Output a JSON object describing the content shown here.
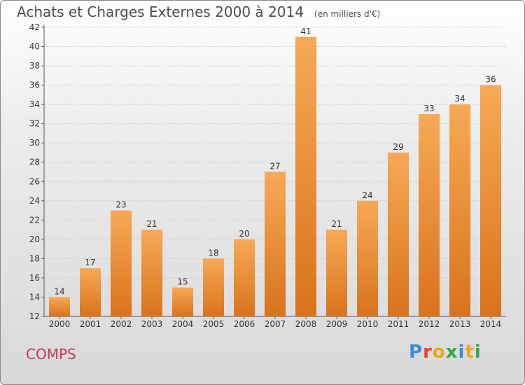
{
  "title": "Achats et Charges Externes 2000 à 2014",
  "unit_note": "(en milliers d'€)",
  "commune": "COMPS",
  "logo": {
    "letters": [
      "P",
      "r",
      "o",
      "x",
      "i",
      "t",
      "i"
    ],
    "colors": [
      "#3a8fd6",
      "#e8452e",
      "#f2a51e",
      "#2eaa4a",
      "#3a8fd6",
      "#f2a51e",
      "#2eaa4a"
    ]
  },
  "colors": {
    "bar_light": "#f7a955",
    "bar_dark": "#d9731c",
    "commune_text": "#c8385a"
  },
  "chart_data": {
    "type": "bar",
    "categories": [
      "2000",
      "2001",
      "2002",
      "2003",
      "2004",
      "2005",
      "2006",
      "2007",
      "2008",
      "2009",
      "2010",
      "2011",
      "2012",
      "2013",
      "2014"
    ],
    "values": [
      14,
      17,
      23,
      21,
      15,
      18,
      20,
      27,
      41,
      21,
      24,
      29,
      33,
      34,
      36
    ],
    "ylim": [
      12,
      42
    ],
    "yticks": [
      12,
      14,
      16,
      18,
      20,
      22,
      24,
      26,
      28,
      30,
      32,
      34,
      36,
      38,
      40,
      42
    ],
    "grid": true,
    "legend": "none"
  }
}
